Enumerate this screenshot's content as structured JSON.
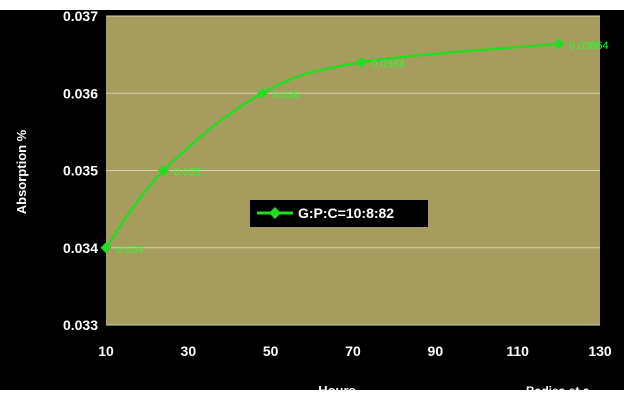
{
  "chart_data": {
    "type": "line",
    "title": "",
    "xlabel": "Hours",
    "ylabel": "Absorption %",
    "x_ticks": [
      10,
      30,
      50,
      70,
      90,
      110,
      130
    ],
    "y_ticks": [
      0.033,
      0.034,
      0.035,
      0.036,
      0.037
    ],
    "xlim": [
      10,
      130
    ],
    "ylim": [
      0.033,
      0.037
    ],
    "grid": true,
    "legend_position": "center",
    "series": [
      {
        "name": "G:P:C=10:8:82",
        "color": "#22dd22",
        "marker": "diamond",
        "x": [
          10,
          24,
          48,
          72,
          120
        ],
        "y": [
          0.034,
          0.035,
          0.036,
          0.0364,
          0.03664
        ],
        "labels": [
          "0.034",
          "0.035",
          "0.036",
          "0.0364",
          "0.03664"
        ]
      }
    ],
    "credit": "Badiea et a"
  },
  "colors": {
    "background": "#000000",
    "plot_area": "#a59c5d",
    "grid": "#d8d2b4",
    "line": "#22dd22",
    "label": "#2bff2b"
  }
}
